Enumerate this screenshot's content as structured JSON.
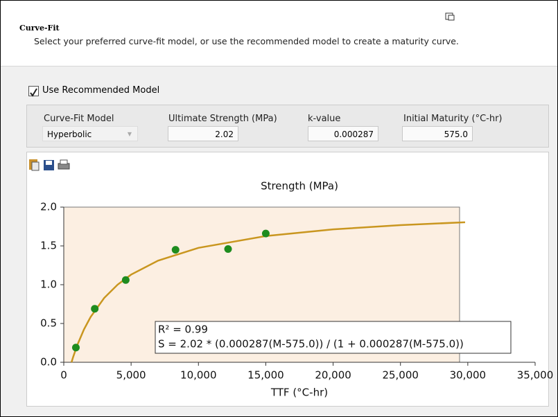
{
  "header": {
    "title": "Curve-Fit",
    "description": "Select your preferred curve-fit model, or use the recommended model to create a maturity curve."
  },
  "recommended": {
    "label": "Use Recommended Model",
    "checked": true
  },
  "fields": [
    {
      "label": "Curve-Fit Model",
      "value": "Hyperbolic"
    },
    {
      "label": "Ultimate Strength (MPa)",
      "value": "2.02"
    },
    {
      "label": "k-value",
      "value": "0.000287"
    },
    {
      "label": "Initial Maturity (°C-hr)",
      "value": "575.0"
    }
  ],
  "chart_data": {
    "type": "scatter",
    "title": "Strength (MPa)",
    "x_label": "TTF (°C-hr)",
    "x": [
      900,
      2300,
      4600,
      8300,
      12200,
      15000
    ],
    "values": [
      0.19,
      0.69,
      1.06,
      1.45,
      1.46,
      1.66
    ],
    "color": "#1e8c1e",
    "fit": {
      "x": [
        575,
        700,
        1000,
        1500,
        2000,
        3000,
        4000,
        5000,
        7000,
        10000,
        15000,
        20000,
        25000,
        29800
      ],
      "values": [
        0,
        0.07,
        0.22,
        0.424,
        0.586,
        0.829,
        1.001,
        1.13,
        1.31,
        1.475,
        1.627,
        1.713,
        1.768,
        1.805
      ],
      "color": "#c9961f"
    },
    "xlim": [
      0,
      35000
    ],
    "xticks": [
      0,
      {
        "value": 5000,
        "label": "5,000"
      },
      {
        "value": 10000,
        "label": "10,000"
      },
      {
        "value": 15000,
        "label": "15,000"
      },
      {
        "value": 20000,
        "label": "20,000"
      },
      {
        "value": 25000,
        "label": "25,000"
      },
      {
        "value": 30000,
        "label": "30,000"
      },
      {
        "value": 35000,
        "label": "35,000"
      }
    ],
    "ylim": [
      0,
      2
    ],
    "yticks": [
      {
        "value": 0,
        "label": "0.0"
      },
      {
        "value": 0.5,
        "label": "0.5"
      },
      {
        "value": 1,
        "label": "1.0"
      },
      {
        "value": 1.5,
        "label": "1.5"
      },
      {
        "value": 2,
        "label": "2.0"
      }
    ],
    "annotations": [
      "R² = 0.99",
      "S = 2.02 * (0.000287(M-575.0)) / (1 + 0.000287(M-575.0))"
    ]
  }
}
